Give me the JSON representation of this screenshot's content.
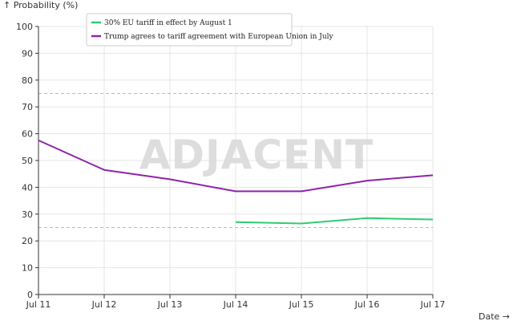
{
  "watermark": "ADJACENT",
  "chart_data": {
    "type": "line",
    "ylabel": "↑ Probability (%)",
    "xlabel": "Date →",
    "ylim": [
      0,
      100
    ],
    "yticks": [
      0,
      10,
      20,
      30,
      40,
      50,
      60,
      70,
      80,
      90,
      100
    ],
    "categories": [
      "Jul 11",
      "Jul 12",
      "Jul 13",
      "Jul 14",
      "Jul 15",
      "Jul 16",
      "Jul 17"
    ],
    "reference_lines": [
      25,
      75
    ],
    "grid": true,
    "legend_position": "top-left",
    "series": [
      {
        "name": "30% EU tariff in effect by August 1",
        "color": "#2ecc71",
        "values": [
          null,
          null,
          null,
          27,
          26.5,
          28.5,
          28
        ]
      },
      {
        "name": "Trump agrees to tariff agreement with European Union in July",
        "color": "#8e24aa",
        "values": [
          57.5,
          46.5,
          43,
          38.5,
          38.5,
          42.5,
          44.5
        ]
      }
    ]
  }
}
